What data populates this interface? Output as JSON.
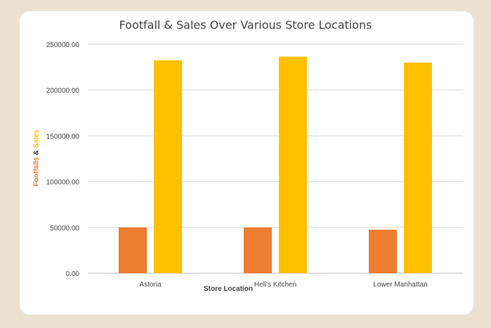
{
  "chart_data": {
    "type": "bar",
    "title": "Footfall & Sales Over Various Store Locations",
    "xlabel": "Store Location",
    "ylabel_parts": [
      "Footfalls",
      "&",
      "Sales"
    ],
    "categories": [
      "Astoria",
      "Hell's Kitchen",
      "Lower Manhattan"
    ],
    "series": [
      {
        "values": [
          50000,
          50000,
          47500
        ],
        "color": "#ed7d31"
      },
      {
        "values": [
          232500,
          236500,
          230000
        ],
        "color": "#ffc000"
      }
    ],
    "ylim": [
      0,
      250000
    ],
    "yticks": [
      "0.00",
      "50000.00",
      "100000.00",
      "150000.00",
      "200000.00",
      "250000.00"
    ],
    "grid": true
  }
}
